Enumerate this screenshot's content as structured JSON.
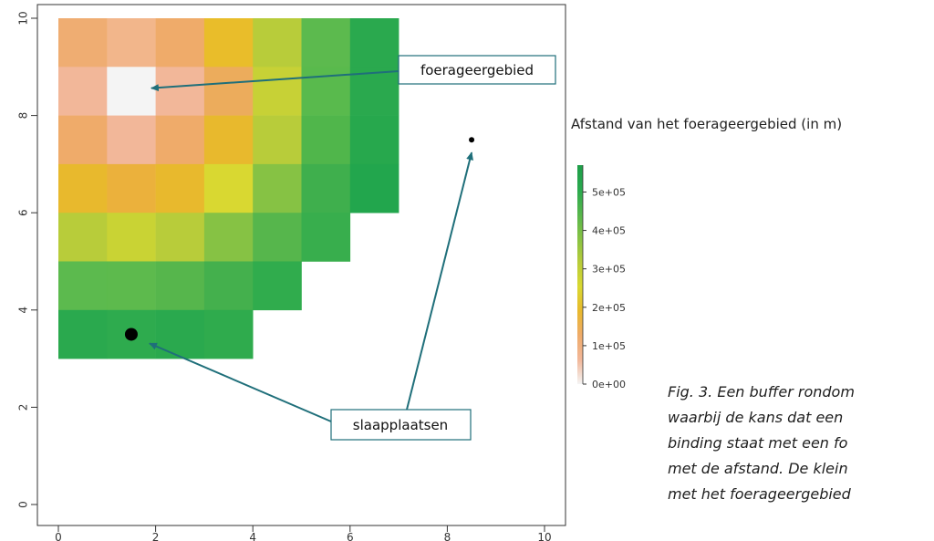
{
  "chart_data": {
    "type": "heatmap",
    "title": "",
    "xlabel": "",
    "ylabel": "",
    "xlim": [
      0,
      10
    ],
    "ylim": [
      0,
      10
    ],
    "xticks": [
      "0",
      "2",
      "4",
      "6",
      "8",
      "10"
    ],
    "yticks": [
      "0",
      "2",
      "4",
      "6",
      "8",
      "10"
    ],
    "grid": false,
    "cell_size": 1,
    "cells": [
      {
        "x": 0.5,
        "y": 9.5,
        "color": "#efad72"
      },
      {
        "x": 1.5,
        "y": 9.5,
        "color": "#f2b68b"
      },
      {
        "x": 2.5,
        "y": 9.5,
        "color": "#efab6a"
      },
      {
        "x": 3.5,
        "y": 9.5,
        "color": "#e9bd2a"
      },
      {
        "x": 4.5,
        "y": 9.5,
        "color": "#b8cc3a"
      },
      {
        "x": 5.5,
        "y": 9.5,
        "color": "#5cba4e"
      },
      {
        "x": 6.5,
        "y": 9.5,
        "color": "#2aa94e"
      },
      {
        "x": 0.5,
        "y": 8.5,
        "color": "#f2b799"
      },
      {
        "x": 1.5,
        "y": 8.5,
        "color": "#f4f4f4"
      },
      {
        "x": 2.5,
        "y": 8.5,
        "color": "#f2b799"
      },
      {
        "x": 3.5,
        "y": 8.5,
        "color": "#ecac5c"
      },
      {
        "x": 4.5,
        "y": 8.5,
        "color": "#c7d136"
      },
      {
        "x": 5.5,
        "y": 8.5,
        "color": "#59ba4d"
      },
      {
        "x": 6.5,
        "y": 8.5,
        "color": "#2aa94e"
      },
      {
        "x": 0.5,
        "y": 7.5,
        "color": "#efab6a"
      },
      {
        "x": 1.5,
        "y": 7.5,
        "color": "#f2b799"
      },
      {
        "x": 2.5,
        "y": 7.5,
        "color": "#efab6a"
      },
      {
        "x": 3.5,
        "y": 7.5,
        "color": "#e8b92d"
      },
      {
        "x": 4.5,
        "y": 7.5,
        "color": "#b8cc3a"
      },
      {
        "x": 5.5,
        "y": 7.5,
        "color": "#50b64b"
      },
      {
        "x": 6.5,
        "y": 7.5,
        "color": "#27a84d"
      },
      {
        "x": 0.5,
        "y": 6.5,
        "color": "#e8b92d"
      },
      {
        "x": 1.5,
        "y": 6.5,
        "color": "#ebb13c"
      },
      {
        "x": 2.5,
        "y": 6.5,
        "color": "#e8b92d"
      },
      {
        "x": 3.5,
        "y": 6.5,
        "color": "#d9d831"
      },
      {
        "x": 4.5,
        "y": 6.5,
        "color": "#86c244"
      },
      {
        "x": 5.5,
        "y": 6.5,
        "color": "#3faf4d"
      },
      {
        "x": 6.5,
        "y": 6.5,
        "color": "#22a64d"
      },
      {
        "x": 0.5,
        "y": 5.5,
        "color": "#b8cc3a"
      },
      {
        "x": 1.5,
        "y": 5.5,
        "color": "#c9d334"
      },
      {
        "x": 2.5,
        "y": 5.5,
        "color": "#b8cc3a"
      },
      {
        "x": 3.5,
        "y": 5.5,
        "color": "#86c244"
      },
      {
        "x": 4.5,
        "y": 5.5,
        "color": "#56b64c"
      },
      {
        "x": 5.5,
        "y": 5.5,
        "color": "#38ae4d"
      },
      {
        "x": 0.5,
        "y": 4.5,
        "color": "#5cba4e"
      },
      {
        "x": 1.5,
        "y": 4.5,
        "color": "#5dba4d"
      },
      {
        "x": 2.5,
        "y": 4.5,
        "color": "#56b64c"
      },
      {
        "x": 3.5,
        "y": 4.5,
        "color": "#44b04d"
      },
      {
        "x": 4.5,
        "y": 4.5,
        "color": "#30ac4d"
      },
      {
        "x": 0.5,
        "y": 3.5,
        "color": "#2aa94e"
      },
      {
        "x": 1.5,
        "y": 3.5,
        "color": "#2eab4e"
      },
      {
        "x": 2.5,
        "y": 3.5,
        "color": "#2aa94e"
      },
      {
        "x": 3.5,
        "y": 3.5,
        "color": "#2fab4d"
      }
    ],
    "points": [
      {
        "name": "slaapplaatsen",
        "x": 1.5,
        "y": 3.5,
        "size": "large"
      },
      {
        "name": "punt",
        "x": 8.5,
        "y": 7.5,
        "size": "small"
      }
    ],
    "annotations": [
      {
        "text": "foerageergebied",
        "target_x": 1.5,
        "target_y": 8.6
      },
      {
        "text": "slaapplaatsen",
        "targets": [
          [
            1.5,
            3.5
          ],
          [
            8.5,
            7.5
          ]
        ]
      }
    ],
    "colorbar": {
      "title": "Afstand van het foerageergebied (in m)",
      "range": [
        0,
        570000
      ],
      "ticks": [
        {
          "value": 0,
          "label": "0e+00"
        },
        {
          "value": 100000,
          "label": "1e+05"
        },
        {
          "value": 200000,
          "label": "2e+05"
        },
        {
          "value": 300000,
          "label": "3e+05"
        },
        {
          "value": 400000,
          "label": "4e+05"
        },
        {
          "value": 500000,
          "label": "5e+05"
        }
      ],
      "gradient": [
        "#f4f4f4",
        "#f2b799",
        "#efab6a",
        "#e8b92d",
        "#d9d831",
        "#b8cc3a",
        "#86c244",
        "#56b64c",
        "#2aa94e",
        "#1f9e49"
      ]
    }
  },
  "caption": {
    "lines": [
      "Fig. 3. Een buffer rondom",
      "waarbij de kans dat een",
      "binding staat met een fo",
      "met de afstand. De klein",
      "met het foerageergebied"
    ]
  },
  "colors": {
    "annotation_border": "#1f6f7a",
    "arrow": "#1f6f7a",
    "axis": "#333333"
  }
}
